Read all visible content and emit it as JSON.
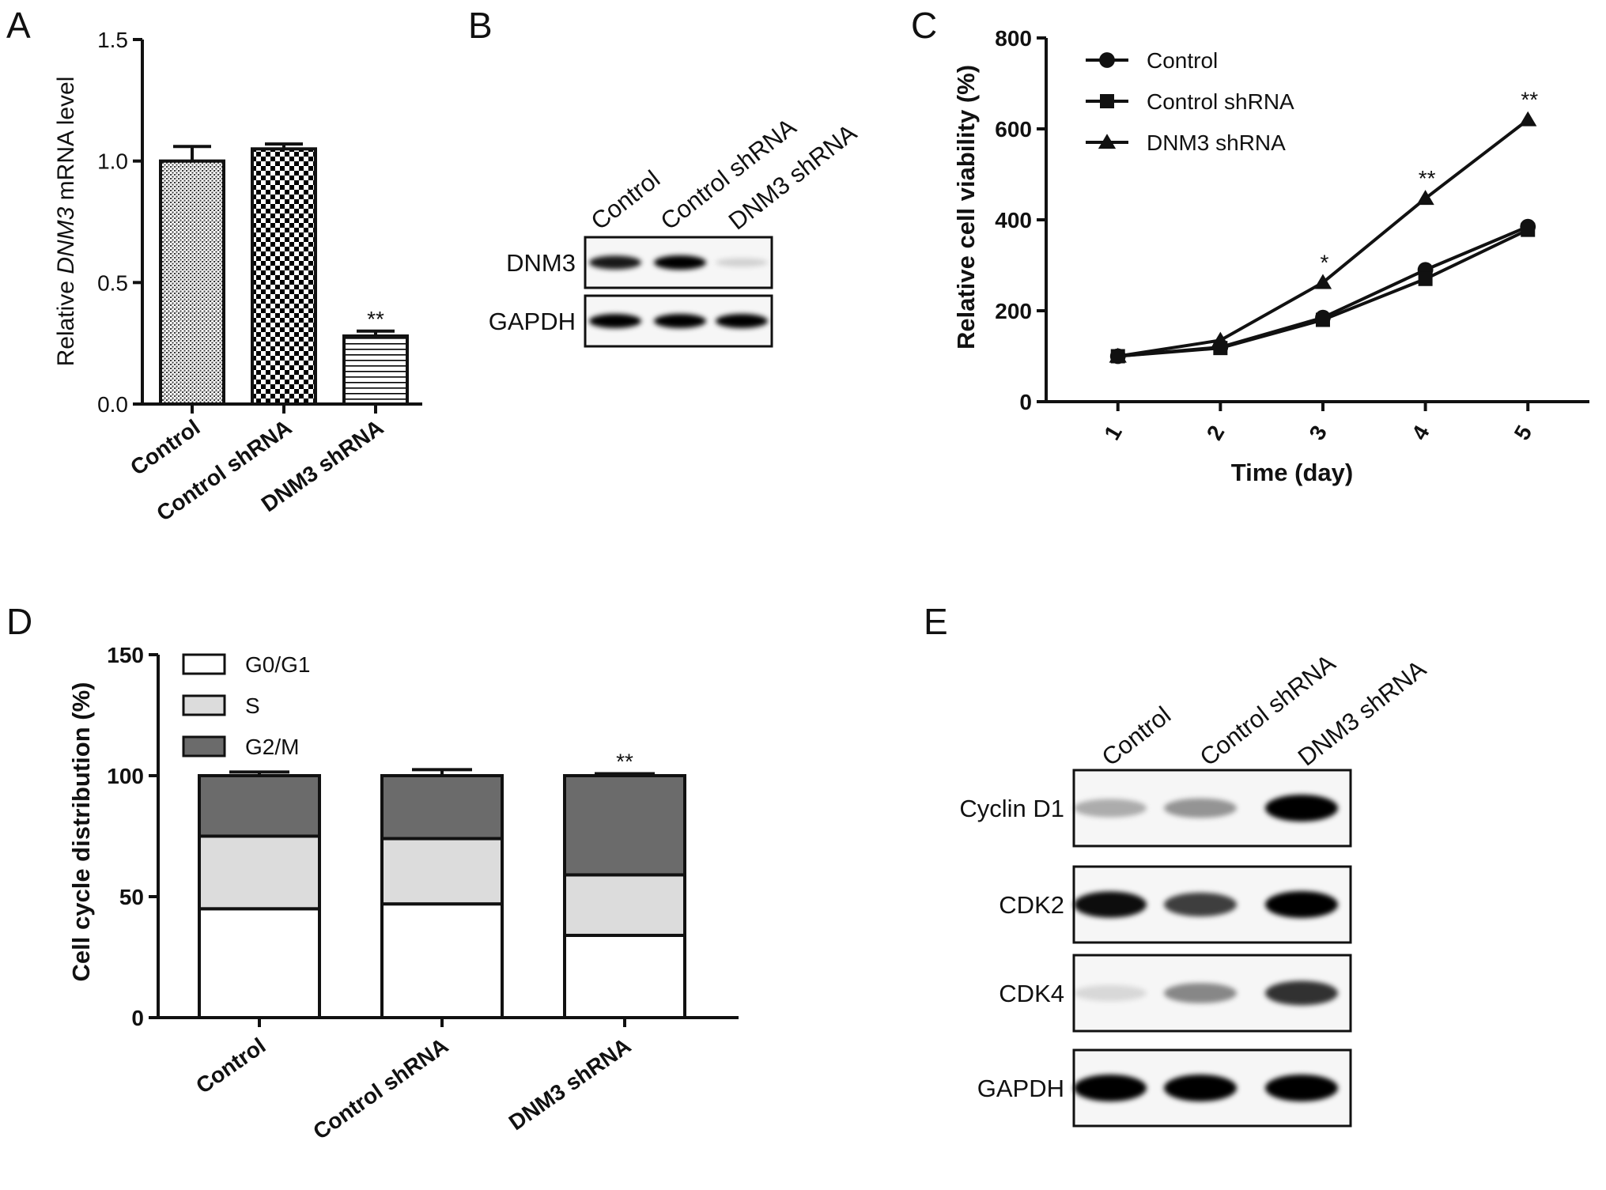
{
  "panels": {
    "A": "A",
    "B": "B",
    "C": "C",
    "D": "D",
    "E": "E"
  },
  "chart_data": [
    {
      "panel": "A",
      "type": "bar",
      "categories": [
        "Control",
        "Control shRNA",
        "DNM3 shRNA"
      ],
      "values": [
        1.0,
        1.05,
        0.28
      ],
      "errors": [
        0.06,
        0.02,
        0.02
      ],
      "significance": [
        "",
        "",
        "**"
      ],
      "ylabel_prefix": "Relative ",
      "ylabel_italic": "DNM3",
      "ylabel_suffix": " mRNA level",
      "ylim": [
        0,
        1.5
      ],
      "yticks": [
        0.0,
        0.5,
        1.0,
        1.5
      ],
      "ytick_labels": [
        "0.0",
        "0.5",
        "1.0",
        "1.5"
      ],
      "patterns": [
        "dots",
        "checker",
        "hlines"
      ]
    },
    {
      "panel": "C",
      "type": "line",
      "xlabel": "Time (day)",
      "ylabel": "Relative cell viability (%)",
      "x": [
        1,
        2,
        3,
        4,
        5
      ],
      "ylim": [
        0,
        800
      ],
      "yticks": [
        0,
        200,
        400,
        600,
        800
      ],
      "legend_position": "top-left",
      "series": [
        {
          "name": "Control",
          "marker": "circle",
          "values": [
            100,
            120,
            185,
            290,
            385
          ]
        },
        {
          "name": "Control shRNA",
          "marker": "square",
          "values": [
            100,
            118,
            180,
            270,
            378
          ]
        },
        {
          "name": "DNM3 shRNA",
          "marker": "triangle",
          "values": [
            100,
            135,
            262,
            447,
            620
          ],
          "significance": [
            "",
            "",
            "*",
            "**",
            "**"
          ]
        }
      ]
    },
    {
      "panel": "D",
      "type": "bar",
      "stacked": true,
      "categories": [
        "Control",
        "Control shRNA",
        "DNM3 shRNA"
      ],
      "ylabel": "Cell cycle distribution (%)",
      "ylim": [
        0,
        150
      ],
      "yticks": [
        0,
        50,
        100,
        150
      ],
      "legend_position": "top-left",
      "series": [
        {
          "name": "G0/G1",
          "color": "#ffffff",
          "values": [
            45,
            47,
            34
          ],
          "errors": [
            4,
            3.5,
            2.5
          ],
          "significance": [
            "",
            "",
            "**"
          ]
        },
        {
          "name": "S",
          "color": "#dcdcdc",
          "values": [
            30,
            27,
            25
          ],
          "errors": [
            2.5,
            2,
            3
          ],
          "significance": [
            "",
            "",
            ""
          ]
        },
        {
          "name": "G2/M",
          "color": "#6b6b6b",
          "values": [
            25,
            26,
            41
          ],
          "errors": [
            1.5,
            2.5,
            0.8
          ],
          "significance": [
            "",
            "",
            "**"
          ]
        }
      ]
    }
  ],
  "blots": {
    "B": {
      "lanes": [
        "Control",
        "Control shRNA",
        "DNM3 shRNA"
      ],
      "rows": [
        {
          "label": "DNM3",
          "intensities": [
            0.9,
            1.0,
            0.15
          ]
        },
        {
          "label": "GAPDH",
          "intensities": [
            1.0,
            1.0,
            1.0
          ]
        }
      ]
    },
    "E": {
      "lanes": [
        "Control",
        "Control shRNA",
        "DNM3 shRNA"
      ],
      "rows": [
        {
          "label": "Cyclin D1",
          "intensities": [
            0.3,
            0.4,
            1.0
          ]
        },
        {
          "label": "CDK2",
          "intensities": [
            0.95,
            0.75,
            1.0
          ]
        },
        {
          "label": "CDK4",
          "intensities": [
            0.12,
            0.45,
            0.8
          ]
        },
        {
          "label": "GAPDH",
          "intensities": [
            1.0,
            1.0,
            1.0
          ]
        }
      ]
    }
  }
}
